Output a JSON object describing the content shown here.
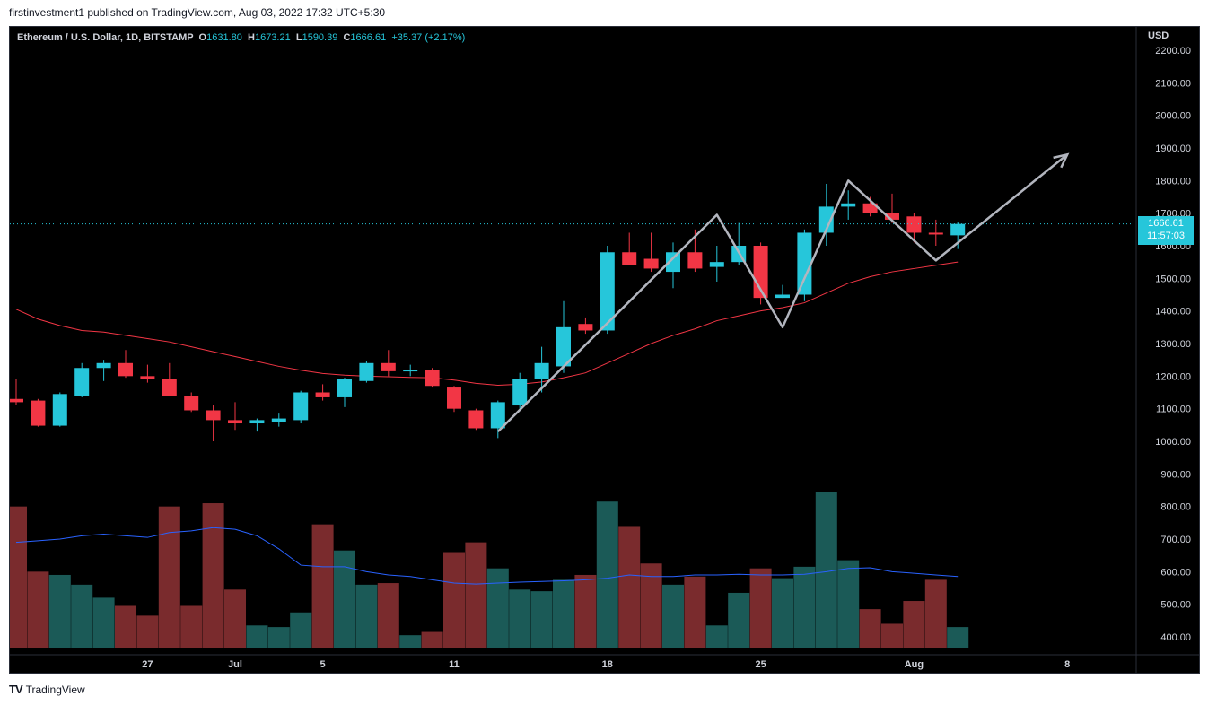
{
  "header": {
    "published_text": "firstinvestment1 published on TradingView.com, Aug 03, 2022 17:32 UTC+5:30"
  },
  "footer": {
    "logo_glyph": "TV",
    "brand": "TradingView"
  },
  "legend": {
    "symbol": "Ethereum / U.S. Dollar, 1D, BITSTAMP",
    "o_label": "O",
    "o_value": "1631.80",
    "h_label": "H",
    "h_value": "1673.21",
    "l_label": "L",
    "l_value": "1590.39",
    "c_label": "C",
    "c_value": "1666.61",
    "change": "+35.37 (+2.17%)"
  },
  "price_tag": {
    "price": "1666.61",
    "countdown": "11:57:03"
  },
  "currency": "USD",
  "colors": {
    "up": "#26c6da",
    "down": "#f23645",
    "vol_up": "#1b5a57",
    "vol_down": "#7a2b2d",
    "ma": "#f23645",
    "vol_ma": "#2962ff",
    "pattern": "#b2b5be"
  },
  "chart_data": {
    "type": "candlestick",
    "y_axis_ticks": [
      "2200.00",
      "2100.00",
      "2000.00",
      "1900.00",
      "1800.00",
      "1700.00",
      "1600.00",
      "1500.00",
      "1400.00",
      "1300.00",
      "1200.00",
      "1100.00",
      "1000.00",
      "900.00",
      "800.00",
      "700.00",
      "600.00",
      "500.00",
      "400.00"
    ],
    "x_axis_labels": [
      {
        "label": "27",
        "day": 6
      },
      {
        "label": "Jul",
        "day": 10
      },
      {
        "label": "5",
        "day": 14
      },
      {
        "label": "11",
        "day": 20
      },
      {
        "label": "18",
        "day": 27
      },
      {
        "label": "25",
        "day": 34
      },
      {
        "label": "Aug",
        "day": 41
      },
      {
        "label": "8",
        "day": 48
      }
    ],
    "candles": [
      {
        "o": 1130,
        "h": 1190,
        "l": 1110,
        "c": 1120
      },
      {
        "o": 1125,
        "h": 1130,
        "l": 1045,
        "c": 1048
      },
      {
        "o": 1048,
        "h": 1150,
        "l": 1045,
        "c": 1145
      },
      {
        "o": 1140,
        "h": 1240,
        "l": 1135,
        "c": 1225
      },
      {
        "o": 1225,
        "h": 1250,
        "l": 1185,
        "c": 1240
      },
      {
        "o": 1240,
        "h": 1280,
        "l": 1195,
        "c": 1200
      },
      {
        "o": 1200,
        "h": 1235,
        "l": 1180,
        "c": 1190
      },
      {
        "o": 1190,
        "h": 1240,
        "l": 1140,
        "c": 1140
      },
      {
        "o": 1140,
        "h": 1150,
        "l": 1090,
        "c": 1095
      },
      {
        "o": 1095,
        "h": 1110,
        "l": 1000,
        "c": 1065
      },
      {
        "o": 1065,
        "h": 1120,
        "l": 1035,
        "c": 1055
      },
      {
        "o": 1055,
        "h": 1070,
        "l": 1030,
        "c": 1065
      },
      {
        "o": 1060,
        "h": 1085,
        "l": 1045,
        "c": 1070
      },
      {
        "o": 1065,
        "h": 1155,
        "l": 1055,
        "c": 1150
      },
      {
        "o": 1150,
        "h": 1175,
        "l": 1125,
        "c": 1135
      },
      {
        "o": 1135,
        "h": 1195,
        "l": 1105,
        "c": 1190
      },
      {
        "o": 1185,
        "h": 1245,
        "l": 1180,
        "c": 1240
      },
      {
        "o": 1240,
        "h": 1280,
        "l": 1200,
        "c": 1215
      },
      {
        "o": 1215,
        "h": 1235,
        "l": 1200,
        "c": 1220
      },
      {
        "o": 1220,
        "h": 1225,
        "l": 1165,
        "c": 1170
      },
      {
        "o": 1165,
        "h": 1170,
        "l": 1090,
        "c": 1100
      },
      {
        "o": 1095,
        "h": 1100,
        "l": 1035,
        "c": 1040
      },
      {
        "o": 1040,
        "h": 1125,
        "l": 1010,
        "c": 1120
      },
      {
        "o": 1110,
        "h": 1210,
        "l": 1100,
        "c": 1190
      },
      {
        "o": 1190,
        "h": 1290,
        "l": 1150,
        "c": 1240
      },
      {
        "o": 1230,
        "h": 1430,
        "l": 1210,
        "c": 1350
      },
      {
        "o": 1360,
        "h": 1380,
        "l": 1330,
        "c": 1340
      },
      {
        "o": 1340,
        "h": 1600,
        "l": 1330,
        "c": 1580
      },
      {
        "o": 1580,
        "h": 1640,
        "l": 1540,
        "c": 1540
      },
      {
        "o": 1560,
        "h": 1640,
        "l": 1520,
        "c": 1530
      },
      {
        "o": 1520,
        "h": 1610,
        "l": 1470,
        "c": 1580
      },
      {
        "o": 1580,
        "h": 1650,
        "l": 1520,
        "c": 1530
      },
      {
        "o": 1535,
        "h": 1600,
        "l": 1490,
        "c": 1550
      },
      {
        "o": 1550,
        "h": 1670,
        "l": 1540,
        "c": 1600
      },
      {
        "o": 1600,
        "h": 1610,
        "l": 1420,
        "c": 1440
      },
      {
        "o": 1440,
        "h": 1480,
        "l": 1440,
        "c": 1450
      },
      {
        "o": 1450,
        "h": 1650,
        "l": 1430,
        "c": 1640
      },
      {
        "o": 1640,
        "h": 1790,
        "l": 1600,
        "c": 1720
      },
      {
        "o": 1720,
        "h": 1770,
        "l": 1680,
        "c": 1730
      },
      {
        "o": 1730,
        "h": 1750,
        "l": 1690,
        "c": 1700
      },
      {
        "o": 1700,
        "h": 1760,
        "l": 1670,
        "c": 1680
      },
      {
        "o": 1690,
        "h": 1700,
        "l": 1610,
        "c": 1640
      },
      {
        "o": 1640,
        "h": 1680,
        "l": 1600,
        "c": 1635
      },
      {
        "o": 1632,
        "h": 1673,
        "l": 1590,
        "c": 1667
      }
    ],
    "ma_line": [
      1405,
      1375,
      1355,
      1340,
      1335,
      1325,
      1315,
      1305,
      1290,
      1275,
      1260,
      1245,
      1230,
      1218,
      1208,
      1203,
      1200,
      1198,
      1196,
      1195,
      1188,
      1178,
      1172,
      1175,
      1182,
      1195,
      1210,
      1240,
      1270,
      1300,
      1325,
      1345,
      1370,
      1385,
      1400,
      1410,
      1425,
      1455,
      1485,
      1505,
      1520,
      1530,
      1540,
      1550
    ],
    "volume": {
      "axis_ticks": [
        "800.00",
        "700.00",
        "600.00",
        "500.00",
        "400.00"
      ],
      "bars": [
        800,
        600,
        590,
        560,
        520,
        495,
        465,
        800,
        495,
        810,
        545,
        435,
        430,
        475,
        745,
        665,
        560,
        565,
        405,
        415,
        660,
        690,
        610,
        545,
        540,
        575,
        590,
        815,
        740,
        625,
        560,
        585,
        435,
        535,
        610,
        580,
        615,
        845,
        635,
        485,
        440,
        510,
        575,
        430
      ],
      "ma": [
        690,
        695,
        700,
        710,
        715,
        710,
        705,
        720,
        725,
        735,
        730,
        710,
        670,
        620,
        615,
        615,
        600,
        590,
        585,
        575,
        565,
        562,
        565,
        568,
        570,
        572,
        575,
        580,
        590,
        585,
        585,
        590,
        590,
        592,
        590,
        590,
        592,
        600,
        610,
        612,
        600,
        595,
        590,
        585
      ]
    },
    "annotation": {
      "type": "zigzag-arrow",
      "points": [
        [
          22,
          1030
        ],
        [
          32,
          1695
        ],
        [
          35,
          1350
        ],
        [
          38,
          1800
        ],
        [
          42,
          1555
        ],
        [
          48,
          1880
        ]
      ]
    }
  }
}
